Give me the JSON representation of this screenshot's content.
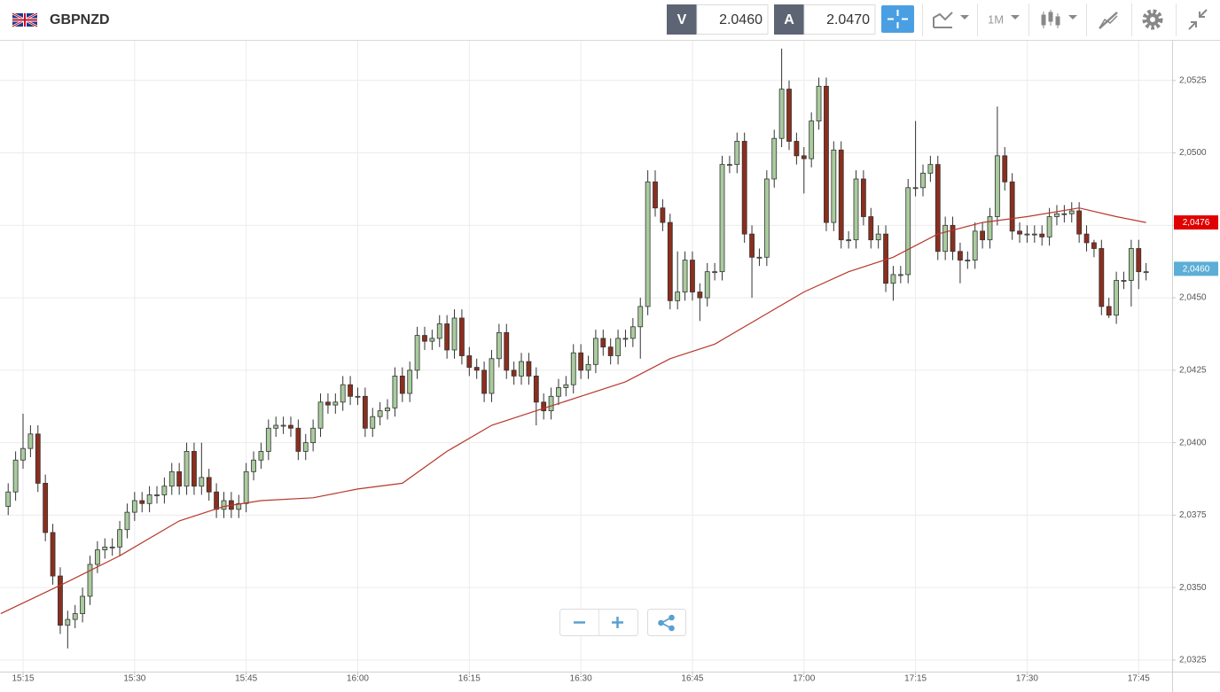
{
  "header": {
    "symbol": "GBPNZD",
    "bid_label": "V",
    "bid": "2.0460",
    "ask_label": "A",
    "ask": "2.0470",
    "timeframe": "1M"
  },
  "chart_data": {
    "type": "candlestick",
    "xlim": [
      -1.1,
      156.5
    ],
    "xticks": [
      {
        "value": 2,
        "label": "15:15"
      },
      {
        "value": 17,
        "label": "15:30"
      },
      {
        "value": 32,
        "label": "15:45"
      },
      {
        "value": 47,
        "label": "16:00"
      },
      {
        "value": 62,
        "label": "16:15"
      },
      {
        "value": 77,
        "label": "16:30"
      },
      {
        "value": 92,
        "label": "16:45"
      },
      {
        "value": 107,
        "label": "17:00"
      },
      {
        "value": 122,
        "label": "17:15"
      },
      {
        "value": 137,
        "label": "17:30"
      },
      {
        "value": 152,
        "label": "17:45"
      }
    ],
    "ylim": [
      2.0321,
      2.0539
    ],
    "yticks": [
      {
        "value": 2.0325,
        "label": "2,0325"
      },
      {
        "value": 2.035,
        "label": "2,0350"
      },
      {
        "value": 2.0375,
        "label": "2,0375"
      },
      {
        "value": 2.04,
        "label": "2,0400"
      },
      {
        "value": 2.0425,
        "label": "2,0425"
      },
      {
        "value": 2.045,
        "label": "2,0450"
      },
      {
        "value": 2.0475,
        "label": "2,0475"
      },
      {
        "value": 2.05,
        "label": "2,0500"
      },
      {
        "value": 2.0525,
        "label": "2,0525"
      }
    ],
    "grid": true,
    "up_color": "#a9cb9e",
    "down_color": "#8c2e1e",
    "candles": {
      "open": [
        2.0378,
        2.0383,
        2.0394,
        2.0398,
        2.0403,
        2.0386,
        2.0369,
        2.0354,
        2.0337,
        2.0339,
        2.0341,
        2.0347,
        2.0358,
        2.0363,
        2.0364,
        2.0364,
        2.037,
        2.0376,
        2.038,
        2.0379,
        2.0382,
        2.0382,
        2.0385,
        2.039,
        2.0385,
        2.0397,
        2.0385,
        2.0388,
        2.0383,
        2.0377,
        2.038,
        2.0377,
        2.0379,
        2.039,
        2.0394,
        2.0397,
        2.0405,
        2.0406,
        2.0406,
        2.0405,
        2.0397,
        2.04,
        2.0405,
        2.0414,
        2.0413,
        2.0414,
        2.042,
        2.0416,
        2.0416,
        2.0405,
        2.0409,
        2.0411,
        2.0412,
        2.0423,
        2.0417,
        2.0425,
        2.0437,
        2.0435,
        2.0436,
        2.0441,
        2.0432,
        2.0443,
        2.043,
        2.0426,
        2.0425,
        2.0417,
        2.0429,
        2.0438,
        2.0425,
        2.0423,
        2.0428,
        2.0423,
        2.0414,
        2.0411,
        2.0416,
        2.0419,
        2.042,
        2.0431,
        2.0425,
        2.0427,
        2.0436,
        2.0433,
        2.043,
        2.0436,
        2.0436,
        2.044,
        2.0447,
        2.049,
        2.0481,
        2.0476,
        2.0449,
        2.0452,
        2.0463,
        2.0452,
        2.045,
        2.0459,
        2.0459,
        2.0496,
        2.0496,
        2.0504,
        2.0472,
        2.0464,
        2.0464,
        2.0491,
        2.0505,
        2.0522,
        2.0504,
        2.0499,
        2.0498,
        2.0511,
        2.0523,
        2.0476,
        2.0501,
        2.047,
        2.047,
        2.0491,
        2.0478,
        2.047,
        2.0472,
        2.0455,
        2.0458,
        2.0458,
        2.0488,
        2.0488,
        2.0493,
        2.0496,
        2.0466,
        2.0475,
        2.0466,
        2.0463,
        2.0463,
        2.0473,
        2.047,
        2.0478,
        2.0499,
        2.049,
        2.0473,
        2.0472,
        2.0472,
        2.0472,
        2.0471,
        2.0478,
        2.0479,
        2.0479,
        2.048,
        2.0472,
        2.0469,
        2.0467,
        2.0447,
        2.0444,
        2.0456,
        2.0456,
        2.0467,
        2.0459
      ],
      "high": [
        2.0386,
        2.0397,
        2.041,
        2.0406,
        2.0406,
        2.0389,
        2.0372,
        2.0357,
        2.0342,
        2.0344,
        2.035,
        2.0361,
        2.0366,
        2.0367,
        2.0367,
        2.0373,
        2.0379,
        2.0383,
        2.0383,
        2.0385,
        2.0385,
        2.0388,
        2.0393,
        2.0393,
        2.04,
        2.04,
        2.04,
        2.0391,
        2.0386,
        2.0383,
        2.0383,
        2.0382,
        2.0393,
        2.0397,
        2.04,
        2.0408,
        2.0409,
        2.0409,
        2.0409,
        2.0408,
        2.0403,
        2.0408,
        2.0417,
        2.0417,
        2.0417,
        2.0423,
        2.0423,
        2.0419,
        2.0419,
        2.0412,
        2.0414,
        2.0415,
        2.0426,
        2.0426,
        2.0428,
        2.044,
        2.044,
        2.0439,
        2.0444,
        2.0444,
        2.0446,
        2.0446,
        2.0433,
        2.0429,
        2.0428,
        2.0432,
        2.0441,
        2.0441,
        2.0428,
        2.0431,
        2.0431,
        2.0426,
        2.0417,
        2.0419,
        2.0422,
        2.0423,
        2.0434,
        2.0434,
        2.043,
        2.0439,
        2.0439,
        2.0436,
        2.0439,
        2.0439,
        2.0443,
        2.045,
        2.0494,
        2.0494,
        2.0484,
        2.0479,
        2.0466,
        2.0466,
        2.0466,
        2.0455,
        2.0462,
        2.0462,
        2.0499,
        2.0499,
        2.0507,
        2.0507,
        2.0475,
        2.0467,
        2.0494,
        2.0508,
        2.0536,
        2.0525,
        2.0507,
        2.0502,
        2.0514,
        2.0526,
        2.0526,
        2.0504,
        2.0504,
        2.0473,
        2.0494,
        2.0494,
        2.0481,
        2.0475,
        2.0475,
        2.0461,
        2.0461,
        2.0491,
        2.0511,
        2.0496,
        2.0499,
        2.0499,
        2.0478,
        2.0478,
        2.0469,
        2.0466,
        2.0476,
        2.0476,
        2.0481,
        2.0516,
        2.0502,
        2.0493,
        2.0476,
        2.0475,
        2.0475,
        2.0475,
        2.0481,
        2.0482,
        2.0482,
        2.0483,
        2.0483,
        2.0475,
        2.047,
        2.047,
        2.045,
        2.0459,
        2.0459,
        2.047,
        2.047,
        2.0462
      ],
      "low": [
        2.0375,
        2.038,
        2.0391,
        2.0395,
        2.0383,
        2.0366,
        2.0351,
        2.0334,
        2.0329,
        2.0336,
        2.0338,
        2.0344,
        2.0355,
        2.036,
        2.0361,
        2.0361,
        2.0367,
        2.0373,
        2.0376,
        2.0376,
        2.0379,
        2.0379,
        2.0382,
        2.0382,
        2.0382,
        2.0382,
        2.0382,
        2.038,
        2.0374,
        2.0374,
        2.0374,
        2.0374,
        2.0376,
        2.0387,
        2.0391,
        2.0394,
        2.0402,
        2.0403,
        2.0402,
        2.0394,
        2.0394,
        2.0397,
        2.0402,
        2.041,
        2.041,
        2.0411,
        2.0413,
        2.0413,
        2.0402,
        2.0402,
        2.0406,
        2.0408,
        2.0409,
        2.0414,
        2.0414,
        2.0422,
        2.0432,
        2.0432,
        2.0433,
        2.0429,
        2.0429,
        2.0427,
        2.0423,
        2.0422,
        2.0414,
        2.0414,
        2.0426,
        2.0422,
        2.042,
        2.042,
        2.042,
        2.0406,
        2.0408,
        2.0408,
        2.0413,
        2.0416,
        2.0417,
        2.0422,
        2.0422,
        2.0424,
        2.043,
        2.0427,
        2.0427,
        2.0433,
        2.0433,
        2.0429,
        2.0444,
        2.0478,
        2.0473,
        2.0446,
        2.0446,
        2.0449,
        2.0449,
        2.0442,
        2.0447,
        2.0456,
        2.0456,
        2.0493,
        2.0493,
        2.0469,
        2.045,
        2.0461,
        2.0461,
        2.0488,
        2.0502,
        2.0501,
        2.0496,
        2.0486,
        2.0495,
        2.0508,
        2.0473,
        2.0473,
        2.0467,
        2.0467,
        2.0467,
        2.0475,
        2.0467,
        2.0467,
        2.0452,
        2.0449,
        2.0455,
        2.0455,
        2.0485,
        2.0485,
        2.049,
        2.0463,
        2.0463,
        2.0463,
        2.0455,
        2.046,
        2.046,
        2.0467,
        2.0467,
        2.0475,
        2.0487,
        2.047,
        2.0469,
        2.0469,
        2.0469,
        2.0468,
        2.0468,
        2.0475,
        2.0476,
        2.0476,
        2.0469,
        2.0466,
        2.0464,
        2.0444,
        2.0443,
        2.0441,
        2.0453,
        2.0447,
        2.0453,
        2.0456
      ],
      "close": [
        2.0383,
        2.0394,
        2.0398,
        2.0403,
        2.0386,
        2.0369,
        2.0354,
        2.0337,
        2.0339,
        2.0341,
        2.0347,
        2.0358,
        2.0363,
        2.0364,
        2.0364,
        2.037,
        2.0376,
        2.038,
        2.0379,
        2.0382,
        2.0382,
        2.0385,
        2.039,
        2.0385,
        2.0397,
        2.0385,
        2.0388,
        2.0383,
        2.0377,
        2.038,
        2.0377,
        2.0379,
        2.039,
        2.0394,
        2.0397,
        2.0405,
        2.0406,
        2.0406,
        2.0405,
        2.0397,
        2.04,
        2.0405,
        2.0414,
        2.0413,
        2.0414,
        2.042,
        2.0416,
        2.0416,
        2.0405,
        2.0409,
        2.0411,
        2.0412,
        2.0423,
        2.0417,
        2.0425,
        2.0437,
        2.0435,
        2.0436,
        2.0441,
        2.0432,
        2.0443,
        2.043,
        2.0426,
        2.0425,
        2.0417,
        2.0429,
        2.0438,
        2.0425,
        2.0423,
        2.0428,
        2.0423,
        2.0414,
        2.0411,
        2.0416,
        2.0419,
        2.042,
        2.0431,
        2.0425,
        2.0427,
        2.0436,
        2.0433,
        2.043,
        2.0436,
        2.0436,
        2.044,
        2.0447,
        2.049,
        2.0481,
        2.0476,
        2.0449,
        2.0452,
        2.0463,
        2.0452,
        2.045,
        2.0459,
        2.0459,
        2.0496,
        2.0496,
        2.0504,
        2.0472,
        2.0464,
        2.0464,
        2.0491,
        2.0505,
        2.0522,
        2.0504,
        2.0499,
        2.0498,
        2.0511,
        2.0523,
        2.0476,
        2.0501,
        2.047,
        2.047,
        2.0491,
        2.0478,
        2.047,
        2.0472,
        2.0455,
        2.0458,
        2.0458,
        2.0488,
        2.0488,
        2.0493,
        2.0496,
        2.0466,
        2.0475,
        2.0466,
        2.0463,
        2.0463,
        2.0473,
        2.047,
        2.0478,
        2.0499,
        2.049,
        2.0473,
        2.0472,
        2.0472,
        2.0472,
        2.0471,
        2.0478,
        2.0479,
        2.0479,
        2.048,
        2.0472,
        2.0469,
        2.0467,
        2.0447,
        2.0444,
        2.0456,
        2.0456,
        2.0467,
        2.0459,
        2.0459
      ]
    },
    "ma": {
      "color": "#b8372c",
      "x": [
        -1,
        8,
        15,
        23,
        29,
        34,
        41,
        47,
        53,
        59,
        65,
        71,
        77,
        83,
        89,
        95,
        101,
        107,
        113,
        119,
        125,
        131,
        137,
        144,
        149,
        153
      ],
      "values": [
        2.0341,
        2.0352,
        2.0361,
        2.0373,
        2.0378,
        2.038,
        2.0381,
        2.0384,
        2.0386,
        2.0397,
        2.0406,
        2.0411,
        2.0416,
        2.0421,
        2.0429,
        2.0434,
        2.0443,
        2.0452,
        2.0459,
        2.0464,
        2.0472,
        2.0476,
        2.0478,
        2.0481,
        2.0478,
        2.0476
      ]
    },
    "price_labels": [
      {
        "value": 2.0476,
        "label": "2,0476",
        "color": "#e00000"
      },
      {
        "value": 2.046,
        "label": "2,0460",
        "color": "#5caed6"
      }
    ]
  }
}
